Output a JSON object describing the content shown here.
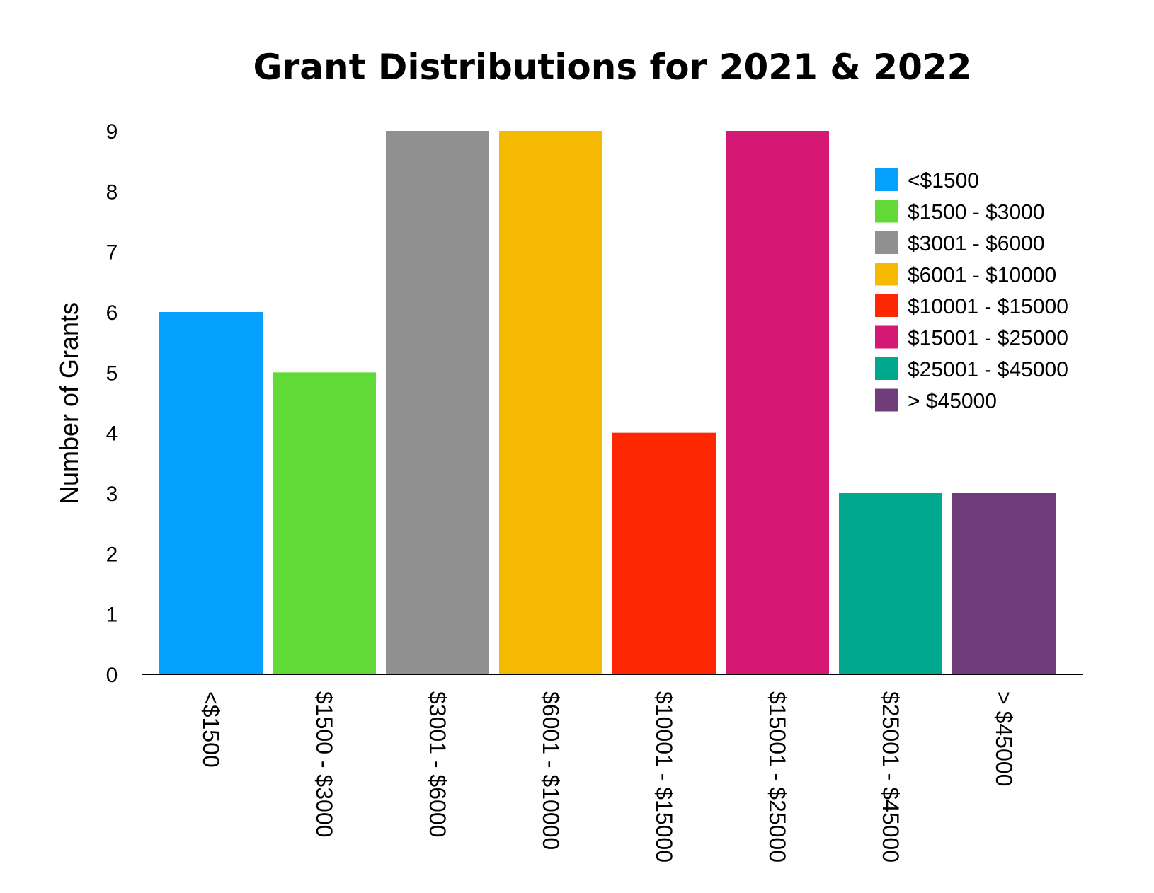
{
  "chart_data": {
    "type": "bar",
    "title": "Grant Distributions for 2021 & 2022",
    "xlabel": "",
    "ylabel": "Number of Grants",
    "ylim": [
      0,
      9
    ],
    "yticks": [
      "0",
      "1",
      "2",
      "3",
      "4",
      "5",
      "6",
      "7",
      "8",
      "9"
    ],
    "categories": [
      "<$1500",
      "$1500 - $3000",
      "$3001 - $6000",
      "$6001 - $10000",
      "$10001 - $15000",
      "$15001 - $25000",
      "$25001 - $45000",
      "> $45000"
    ],
    "values": [
      6,
      5,
      9,
      9,
      4,
      9,
      3,
      3
    ],
    "colors": [
      "#04a0fc",
      "#61d936",
      "#919191",
      "#f6ba02",
      "#fd2701",
      "#d41874",
      "#00a98e",
      "#6f3c79"
    ],
    "legend": {
      "position": "top-right",
      "entries": [
        "<$1500",
        "$1500 - $3000",
        "$3001 - $6000",
        "$6001 - $10000",
        "$10001 - $15000",
        "$15001 - $25000",
        "$25001 - $45000",
        "> $45000"
      ]
    },
    "grid": false
  }
}
